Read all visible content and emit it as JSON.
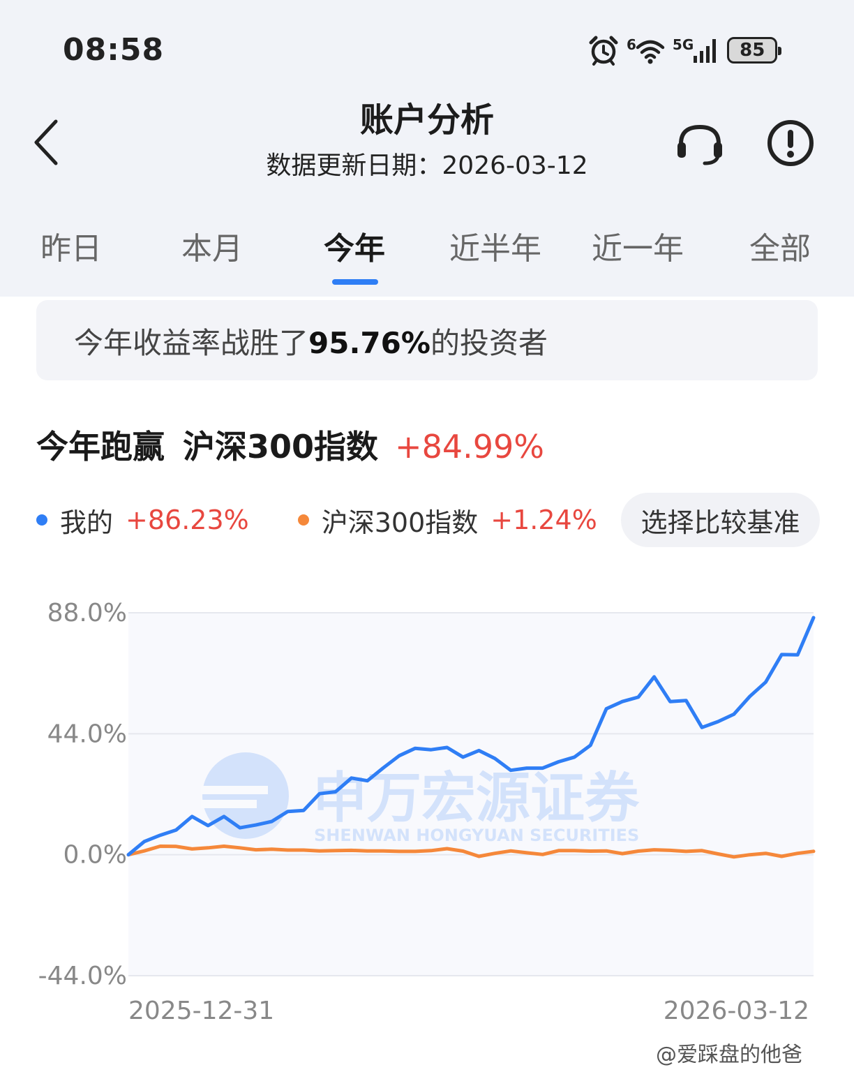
{
  "status_bar": {
    "time": "08:58",
    "network_superscript": "6",
    "network_type": "5G",
    "battery": "85"
  },
  "header": {
    "title": "账户分析",
    "subtitle": "数据更新日期：2026-03-12"
  },
  "tabs": [
    {
      "label": "昨日",
      "active": false
    },
    {
      "label": "本月",
      "active": false
    },
    {
      "label": "今年",
      "active": true
    },
    {
      "label": "近半年",
      "active": false
    },
    {
      "label": "近一年",
      "active": false
    },
    {
      "label": "全部",
      "active": false
    }
  ],
  "banner": {
    "prefix": "今年收益率战胜了",
    "value": "95.76%",
    "suffix": "的投资者"
  },
  "outperform": {
    "label": "今年跑赢",
    "index_name": "沪深300指数",
    "value": "+84.99%"
  },
  "legend": {
    "mine_label": "我的",
    "mine_value": "+86.23%",
    "index_label": "沪深300指数",
    "index_value": "+1.24%"
  },
  "benchmark_button": "选择比较基准",
  "colors": {
    "accent_blue": "#2f7ef5",
    "index_orange": "#f5883a",
    "positive_red": "#e8473f"
  },
  "chart_data": {
    "type": "line",
    "ylim": [
      -44.0,
      88.0
    ],
    "y_ticks": [
      "88.0%",
      "44.0%",
      "0.0%",
      "-44.0%"
    ],
    "y_tick_values": [
      88,
      44,
      0,
      -44
    ],
    "x_start_label": "2025-12-31",
    "x_end_label": "2026-03-12",
    "series": [
      {
        "name": "我的",
        "color": "#2f7ef5",
        "values": [
          0,
          4.8,
          7.1,
          9.0,
          13.9,
          10.6,
          13.9,
          9.8,
          10.8,
          12.1,
          15.7,
          16.1,
          22.2,
          22.9,
          27.9,
          26.9,
          31.6,
          36.0,
          38.7,
          38.2,
          39.0,
          35.5,
          37.9,
          35.0,
          30.7,
          31.5,
          31.5,
          33.8,
          35.5,
          39.8,
          53.1,
          55.7,
          57.3,
          64.7,
          55.7,
          56.1,
          46.3,
          48.4,
          51.1,
          57.6,
          62.8,
          72.8,
          72.7,
          86.23
        ]
      },
      {
        "name": "沪深300指数",
        "color": "#f5883a",
        "values": [
          0,
          1.4,
          3.1,
          3.0,
          2.1,
          2.5,
          3.1,
          2.5,
          1.8,
          2.0,
          1.7,
          1.7,
          1.4,
          1.5,
          1.6,
          1.4,
          1.4,
          1.2,
          1.2,
          1.5,
          2.2,
          1.3,
          -0.6,
          0.5,
          1.4,
          0.7,
          0.1,
          1.5,
          1.5,
          1.3,
          1.4,
          0.4,
          1.3,
          1.8,
          1.6,
          1.2,
          1.5,
          0.3,
          -0.8,
          0,
          0.5,
          -0.6,
          0.5,
          1.24
        ]
      }
    ]
  },
  "watermark": {
    "chart_watermark_cn": "申万宏源证券",
    "chart_watermark_en": "SHENWAN HONGYUAN SECURITIES",
    "corner_text": "@爱踩盘的他爸"
  }
}
